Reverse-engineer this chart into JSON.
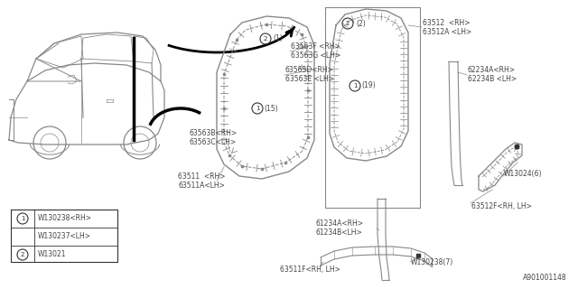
{
  "bg_color": "#ffffff",
  "line_color": "#888888",
  "dark_color": "#333333",
  "text_color": "#444444",
  "part_number": "A901001148",
  "legend": [
    {
      "sym": "1",
      "row1": "W130238<RH>",
      "row2": "W130237<LH>"
    },
    {
      "sym": "2",
      "row1": "W13021",
      "row2": ""
    }
  ]
}
